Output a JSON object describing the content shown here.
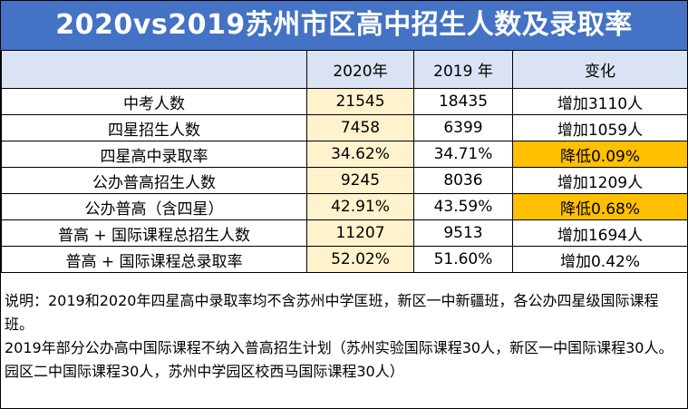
{
  "title": "2020vs2019苏州市区高中招生人数及录取率",
  "columns": [
    "",
    "2020年",
    "2019 年",
    "变化"
  ],
  "rows": [
    {
      "label": "中考人数",
      "v2020": "21545",
      "v2019": "18435",
      "change": "增加3110人",
      "highlight": false
    },
    {
      "label": "四星招生人数",
      "v2020": "7458",
      "v2019": "6399",
      "change": "增加1059人",
      "highlight": false
    },
    {
      "label": "四星高中录取率",
      "v2020": "34.62%",
      "v2019": "34.71%",
      "change": "降低0.09%",
      "highlight": true
    },
    {
      "label": "公办普高招生人数",
      "v2020": "9245",
      "v2019": "8036",
      "change": "增加1209人",
      "highlight": false
    },
    {
      "label": "公办普高（含四星）",
      "v2020": "42.91%",
      "v2019": "43.59%",
      "change": "降低0.68%",
      "highlight": true
    },
    {
      "label": "普高 + 国际课程总招生人数",
      "v2020": "11207",
      "v2019": "9513",
      "change": "增加1694人",
      "highlight": false
    },
    {
      "label": "普高 + 国际课程总录取率",
      "v2020": "52.02%",
      "v2019": "51.60%",
      "change": "增加0.42%",
      "highlight": false
    }
  ],
  "notes": [
    "说明：2019和2020年四星高中录取率均不含苏州中学匡班，新区一中新疆班，各公办四星级国际课程班。",
    "2019年部分公办高中国际课程不纳入普高招生计划（苏州实验国际课程30人，新区一中国际课程30人。园区二中国际课程30人，苏州中学园区校西马国际课程30人）"
  ],
  "colors": {
    "title_bg": "#4472c4",
    "header_bg": "#dae3f3",
    "col2020_bg": "#fff2cc",
    "highlight_bg": "#ffc000"
  }
}
